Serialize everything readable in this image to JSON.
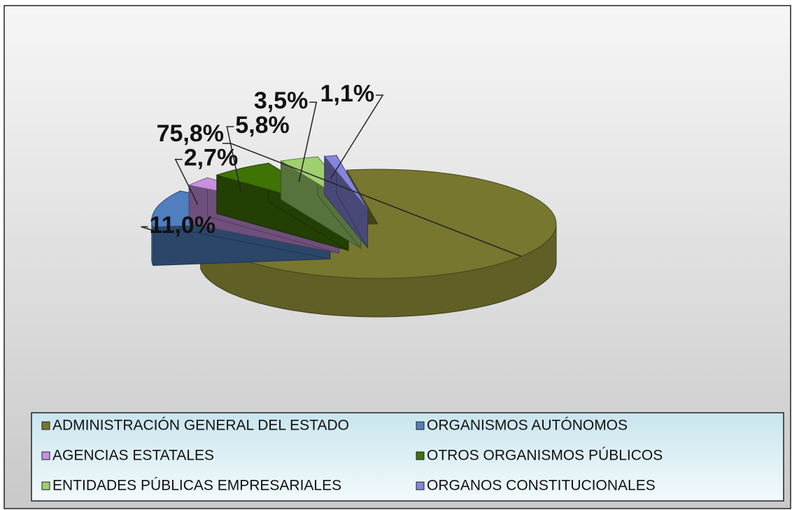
{
  "chart_data": {
    "type": "pie",
    "categories": [
      "ADMINISTRACIÓN GENERAL DEL ESTADO",
      "ORGANISMOS AUTÓNOMOS",
      "AGENCIAS ESTATALES",
      "OTROS ORGANISMOS PÚBLICOS",
      "ENTIDADES PÚBLICAS EMPRESARIALES",
      "ORGANOS CONSTITUCIONALES"
    ],
    "values": [
      75.8,
      11.0,
      2.7,
      5.8,
      3.5,
      1.1
    ],
    "value_labels": [
      "75,8%",
      "11,0%",
      "2,7%",
      "5,8%",
      "3,5%",
      "1,1%"
    ],
    "colors": [
      "#77772f",
      "#4f7fbf",
      "#c990e0",
      "#3f7306",
      "#9fd06f",
      "#8585dc"
    ],
    "legend": "bottom"
  }
}
